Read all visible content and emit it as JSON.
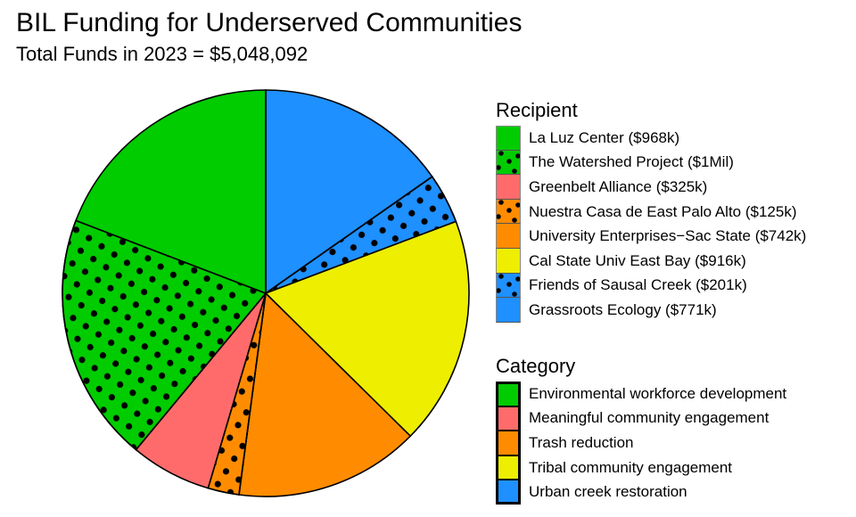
{
  "header": {
    "title": "BIL Funding for Underserved Communities",
    "subtitle": "Total Funds in 2023 = $5,048,092"
  },
  "legend_recipient": {
    "title": "Recipient",
    "items": [
      {
        "label": "La Luz Center ($968k)",
        "color": "#00CC00",
        "dotted": false
      },
      {
        "label": "The Watershed Project ($1Mil)",
        "color": "#00CC00",
        "dotted": true
      },
      {
        "label": "Greenbelt Alliance ($325k)",
        "color": "#FF6B6B",
        "dotted": false
      },
      {
        "label": "Nuestra Casa de East Palo Alto ($125k)",
        "color": "#FF8C00",
        "dotted": true
      },
      {
        "label": "University Enterprises−Sac State ($742k)",
        "color": "#FF8C00",
        "dotted": false
      },
      {
        "label": "Cal State Univ East Bay ($916k)",
        "color": "#EEEE00",
        "dotted": false
      },
      {
        "label": "Friends of Sausal Creek ($201k)",
        "color": "#1E90FF",
        "dotted": true
      },
      {
        "label": "Grassroots Ecology ($771k)",
        "color": "#1E90FF",
        "dotted": false
      }
    ]
  },
  "legend_category": {
    "title": "Category",
    "items": [
      {
        "label": "Environmental workforce development",
        "color": "#00CC00"
      },
      {
        "label": "Meaningful community engagement",
        "color": "#FF6B6B"
      },
      {
        "label": "Trash reduction",
        "color": "#FF8C00"
      },
      {
        "label": "Tribal community engagement",
        "color": "#EEEE00"
      },
      {
        "label": "Urban creek restoration",
        "color": "#1E90FF"
      }
    ]
  },
  "chart_data": {
    "type": "pie",
    "title": "BIL Funding for Underserved Communities",
    "subtitle": "Total Funds in 2023 = $5,048,092",
    "total": 5048092,
    "direction": "clockwise from 12 o'clock",
    "slices": [
      {
        "label": "Grassroots Ecology",
        "value_k": 771,
        "category": "Urban creek restoration",
        "color": "#1E90FF",
        "dotted": false
      },
      {
        "label": "Friends of Sausal Creek",
        "value_k": 201,
        "category": "Urban creek restoration",
        "color": "#1E90FF",
        "dotted": true
      },
      {
        "label": "Cal State Univ East Bay",
        "value_k": 916,
        "category": "Tribal community engagement",
        "color": "#EEEE00",
        "dotted": false
      },
      {
        "label": "University Enterprises-Sac State",
        "value_k": 742,
        "category": "Trash reduction",
        "color": "#FF8C00",
        "dotted": false
      },
      {
        "label": "Nuestra Casa de East Palo Alto",
        "value_k": 125,
        "category": "Trash reduction",
        "color": "#FF8C00",
        "dotted": true
      },
      {
        "label": "Greenbelt Alliance",
        "value_k": 325,
        "category": "Meaningful community engagement",
        "color": "#FF6B6B",
        "dotted": false
      },
      {
        "label": "The Watershed Project",
        "value_k": 1000,
        "category": "Environmental workforce development",
        "color": "#00CC00",
        "dotted": true
      },
      {
        "label": "La Luz Center",
        "value_k": 968,
        "category": "Environmental workforce development",
        "color": "#00CC00",
        "dotted": false
      }
    ],
    "legend_position": "right"
  }
}
